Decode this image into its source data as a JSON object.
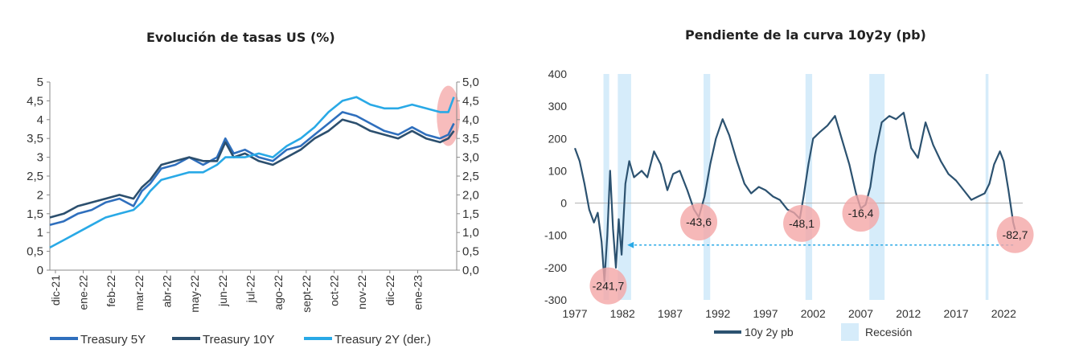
{
  "chart_data": [
    {
      "type": "line",
      "title": "Evolución de tasas US (%)",
      "xlabel": "",
      "ylabel": "",
      "x_tick_labels": [
        "dic-21",
        "ene-22",
        "feb-22",
        "mar-22",
        "abr-22",
        "may-22",
        "jun-22",
        "jul-22",
        "ago-22",
        "sept-22",
        "oct-22",
        "nov-22",
        "dic-22",
        "ene-23"
      ],
      "y_left": {
        "ticks": [
          "0",
          "0,5",
          "1",
          "1,5",
          "2",
          "2,5",
          "3",
          "3,5",
          "4",
          "4,5",
          "5"
        ],
        "ylim": [
          0,
          5
        ]
      },
      "y_right": {
        "ticks": [
          "0,0",
          "0,5",
          "1,0",
          "1,5",
          "2,0",
          "2,5",
          "3,0",
          "3,5",
          "4,0",
          "4,5",
          "5,0"
        ],
        "ylim": [
          0,
          5
        ]
      },
      "x_range": [
        0,
        14.6
      ],
      "grid": false,
      "legend": "bottom",
      "highlight": {
        "x_from": 14.0,
        "x_to": 14.6,
        "y_from": 3.3,
        "y_to": 4.9,
        "color": "#f4a6a6"
      },
      "series": [
        {
          "name": "Treasury 5Y",
          "axis": "left",
          "color": "#2f6fbd",
          "x": [
            0,
            0.5,
            1,
            1.5,
            2,
            2.5,
            3,
            3.3,
            3.6,
            4,
            4.5,
            5,
            5.5,
            6,
            6.3,
            6.6,
            7,
            7.5,
            8,
            8.5,
            9,
            9.5,
            10,
            10.5,
            11,
            11.5,
            12,
            12.5,
            13,
            13.5,
            14,
            14.3,
            14.5
          ],
          "y": [
            1.2,
            1.3,
            1.5,
            1.6,
            1.8,
            1.9,
            1.7,
            2.1,
            2.3,
            2.7,
            2.8,
            3.0,
            2.8,
            3.0,
            3.5,
            3.1,
            3.2,
            3.0,
            2.9,
            3.2,
            3.3,
            3.6,
            3.9,
            4.2,
            4.1,
            3.9,
            3.7,
            3.6,
            3.8,
            3.6,
            3.5,
            3.6,
            3.9
          ]
        },
        {
          "name": "Treasury 10Y",
          "axis": "left",
          "color": "#2c4f6e",
          "x": [
            0,
            0.5,
            1,
            1.5,
            2,
            2.5,
            3,
            3.3,
            3.6,
            4,
            4.5,
            5,
            5.5,
            6,
            6.3,
            6.6,
            7,
            7.5,
            8,
            8.5,
            9,
            9.5,
            10,
            10.5,
            11,
            11.5,
            12,
            12.5,
            13,
            13.5,
            14,
            14.3,
            14.5
          ],
          "y": [
            1.4,
            1.5,
            1.7,
            1.8,
            1.9,
            2.0,
            1.9,
            2.2,
            2.4,
            2.8,
            2.9,
            3.0,
            2.9,
            2.9,
            3.4,
            3.0,
            3.1,
            2.9,
            2.8,
            3.0,
            3.2,
            3.5,
            3.7,
            4.0,
            3.9,
            3.7,
            3.6,
            3.5,
            3.7,
            3.5,
            3.4,
            3.5,
            3.7
          ]
        },
        {
          "name": "Treasury 2Y (der.)",
          "axis": "right",
          "color": "#29a9e6",
          "x": [
            0,
            0.5,
            1,
            1.5,
            2,
            2.5,
            3,
            3.3,
            3.6,
            4,
            4.5,
            5,
            5.5,
            6,
            6.3,
            6.6,
            7,
            7.5,
            8,
            8.5,
            9,
            9.5,
            10,
            10.5,
            11,
            11.5,
            12,
            12.5,
            13,
            13.5,
            14,
            14.3,
            14.5
          ],
          "y": [
            0.6,
            0.8,
            1.0,
            1.2,
            1.4,
            1.5,
            1.6,
            1.8,
            2.1,
            2.4,
            2.5,
            2.6,
            2.6,
            2.8,
            3.0,
            3.0,
            3.0,
            3.1,
            3.0,
            3.3,
            3.5,
            3.8,
            4.2,
            4.5,
            4.6,
            4.4,
            4.3,
            4.3,
            4.4,
            4.3,
            4.2,
            4.2,
            4.6
          ]
        }
      ]
    },
    {
      "type": "line",
      "title": "Pendiente de la curva 10y2y (pb)",
      "xlabel": "",
      "ylabel": "",
      "x_ticks": [
        1977,
        1982,
        1987,
        1992,
        1997,
        2002,
        2007,
        2012,
        2017,
        2022
      ],
      "x_range": [
        1977,
        2024
      ],
      "y_ticks": [
        -300,
        -200,
        -100,
        0,
        100,
        200,
        300,
        400
      ],
      "ylim": [
        -300,
        400
      ],
      "grid": false,
      "legend": "bottom",
      "recession_label": "Recesión",
      "recession_color": "#d6ecfa",
      "recessions": [
        [
          1980.0,
          1980.6
        ],
        [
          1981.5,
          1982.9
        ],
        [
          1990.5,
          1991.2
        ],
        [
          2001.2,
          2001.9
        ],
        [
          2007.9,
          2009.5
        ],
        [
          2020.1,
          2020.4
        ]
      ],
      "annotations": [
        {
          "x": 1980.5,
          "y": -241.7,
          "label": "-241,7"
        },
        {
          "x": 1990.0,
          "y": -43.6,
          "label": "-43,6"
        },
        {
          "x": 2000.8,
          "y": -48.1,
          "label": "-48,1"
        },
        {
          "x": 2007.0,
          "y": -16.4,
          "label": "-16,4"
        },
        {
          "x": 2023.2,
          "y": -82.7,
          "label": "-82,7"
        }
      ],
      "arrow": {
        "from_x": 2023.0,
        "to_x": 1982.5,
        "y": -130,
        "color": "#29a9e6"
      },
      "series": [
        {
          "name": "10y 2y pb",
          "color": "#2c5270",
          "x": [
            1977.0,
            1977.5,
            1978.0,
            1978.5,
            1979.0,
            1979.4,
            1979.8,
            1980.1,
            1980.4,
            1980.7,
            1981.0,
            1981.3,
            1981.6,
            1981.9,
            1982.3,
            1982.7,
            1983.2,
            1984.0,
            1984.6,
            1985.3,
            1986.0,
            1986.7,
            1987.3,
            1988.0,
            1988.8,
            1989.5,
            1990.0,
            1990.6,
            1991.2,
            1991.8,
            1992.5,
            1993.2,
            1994.0,
            1994.8,
            1995.5,
            1996.3,
            1997.0,
            1997.8,
            1998.5,
            1999.3,
            2000.0,
            2000.6,
            2001.0,
            2001.5,
            2002.0,
            2002.7,
            2003.5,
            2004.3,
            2005.0,
            2005.8,
            2006.5,
            2007.0,
            2007.5,
            2008.0,
            2008.5,
            2009.2,
            2010.0,
            2010.7,
            2011.5,
            2012.3,
            2013.0,
            2013.8,
            2014.6,
            2015.4,
            2016.2,
            2017.0,
            2017.8,
            2018.6,
            2019.3,
            2020.0,
            2020.5,
            2021.0,
            2021.6,
            2022.0,
            2022.5,
            2023.0,
            2023.2
          ],
          "y": [
            170,
            130,
            60,
            -20,
            -60,
            -30,
            -120,
            -241.7,
            -100,
            100,
            -80,
            -200,
            -50,
            -160,
            60,
            130,
            80,
            100,
            80,
            160,
            120,
            40,
            90,
            100,
            40,
            -20,
            -43.6,
            20,
            120,
            200,
            260,
            210,
            130,
            60,
            30,
            50,
            40,
            20,
            10,
            -20,
            -30,
            -48.1,
            20,
            120,
            200,
            220,
            240,
            270,
            200,
            120,
            30,
            -16.4,
            -5,
            50,
            150,
            250,
            270,
            260,
            280,
            170,
            140,
            250,
            180,
            130,
            90,
            70,
            40,
            10,
            20,
            30,
            60,
            120,
            160,
            130,
            40,
            -60,
            -82.7
          ]
        }
      ]
    }
  ]
}
